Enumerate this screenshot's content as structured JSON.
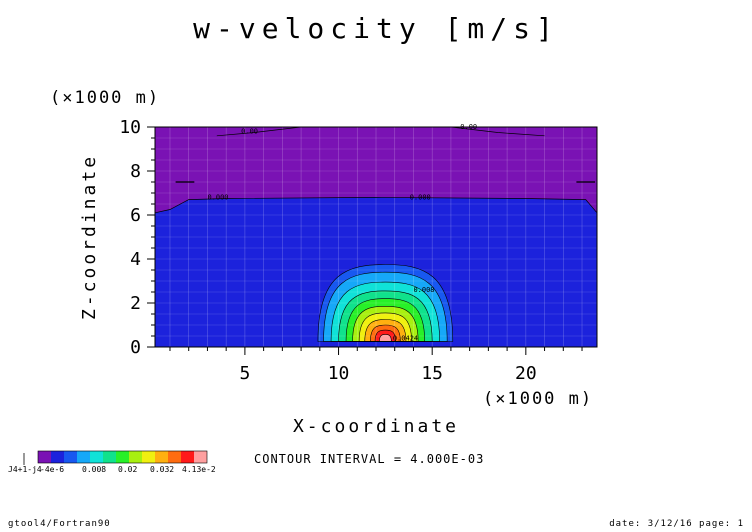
{
  "chart_data": {
    "type": "contour",
    "title": "w-velocity [m/s]",
    "xlabel": "X-coordinate",
    "ylabel": "Z-coordinate",
    "x_unit": "(×1000 m)",
    "y_unit": "(×1000 m)",
    "xlim": [
      0.2,
      23.8
    ],
    "ylim": [
      0,
      10
    ],
    "x_ticks": [
      5,
      10,
      15,
      20
    ],
    "y_ticks": [
      0,
      2,
      4,
      6,
      8,
      10
    ],
    "x_tick_labels": [
      "5",
      "10",
      "15",
      "20"
    ],
    "y_tick_labels": [
      "0",
      "2",
      "4",
      "6",
      "8",
      "10"
    ],
    "grid": true,
    "contour_interval_text": "CONTOUR INTERVAL = 4.000E-03",
    "contour_labels": [
      {
        "text": "0.00",
        "x": 4.8,
        "z": 9.7
      },
      {
        "text": "0.00",
        "x": 16.5,
        "z": 9.9
      },
      {
        "text": "0.000",
        "x": 3.0,
        "z": 6.7
      },
      {
        "text": "0.000",
        "x": 13.8,
        "z": 6.7
      },
      {
        "text": "0.008",
        "x": 14.0,
        "z": 2.5
      },
      {
        "text": "0.0424",
        "x": 12.9,
        "z": 0.3
      }
    ],
    "contour_levels": [
      -0.004,
      0.0,
      0.004,
      0.008,
      0.012,
      0.016,
      0.02,
      0.024,
      0.028,
      0.032,
      0.036,
      0.04
    ],
    "colorbar": {
      "colors": [
        "#7a12b4",
        "#1c22dc",
        "#1858f0",
        "#16a8f8",
        "#10e2d8",
        "#10e28c",
        "#28f028",
        "#a8f010",
        "#f0f010",
        "#ffb010",
        "#ff6c10",
        "#ff1a1a",
        "#ffa0a0"
      ],
      "tick_labels": [
        "-4e-6",
        "0.008",
        "0.02",
        "0.032",
        "4.13e-2"
      ],
      "left_label": "J4+1-j4"
    },
    "regions": [
      {
        "level": "below -0.004 (top layer)",
        "color": "#7a12b4",
        "z_range": [
          6.6,
          10
        ]
      },
      {
        "level": "-0.004 to 0.004 (background)",
        "color": "#1c22dc",
        "z_range": [
          0,
          6.6
        ]
      },
      {
        "level": "updraft core",
        "x_center": 12.5,
        "z_top": 3.5,
        "max": 0.0424
      }
    ]
  },
  "footer": {
    "left": "gtool4/Fortran90",
    "right": "date: 3/12/16 page: 1"
  }
}
